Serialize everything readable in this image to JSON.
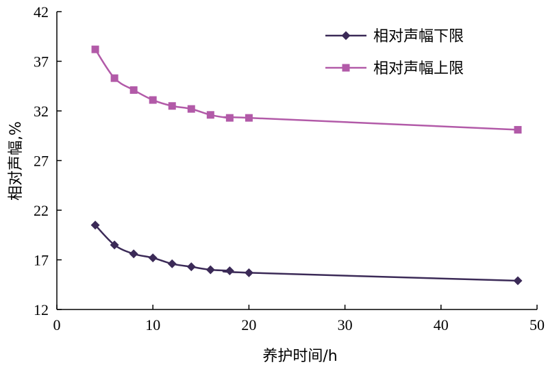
{
  "chart_data": {
    "type": "line",
    "xlabel": "养护时间/h",
    "ylabel": "相对声幅,%",
    "xlim": [
      0,
      50
    ],
    "ylim": [
      12,
      42
    ],
    "xticks": [
      0,
      10,
      20,
      30,
      40,
      50
    ],
    "yticks": [
      12,
      17,
      22,
      27,
      32,
      37,
      42
    ],
    "grid": false,
    "legend_position": "top-right",
    "series": [
      {
        "name": "相对声幅下限",
        "color": "#3b2a57",
        "marker": "diamond",
        "x": [
          4,
          6,
          8,
          10,
          12,
          14,
          16,
          18,
          20,
          48
        ],
        "y": [
          20.5,
          18.5,
          17.6,
          17.2,
          16.6,
          16.3,
          16.0,
          15.9,
          15.7,
          14.9
        ]
      },
      {
        "name": "相对声幅上限",
        "color": "#b25aa8",
        "marker": "square",
        "x": [
          4,
          6,
          8,
          10,
          12,
          14,
          16,
          18,
          20,
          48
        ],
        "y": [
          38.2,
          35.3,
          34.1,
          33.1,
          32.5,
          32.2,
          31.6,
          31.3,
          31.3,
          30.1
        ]
      }
    ]
  }
}
